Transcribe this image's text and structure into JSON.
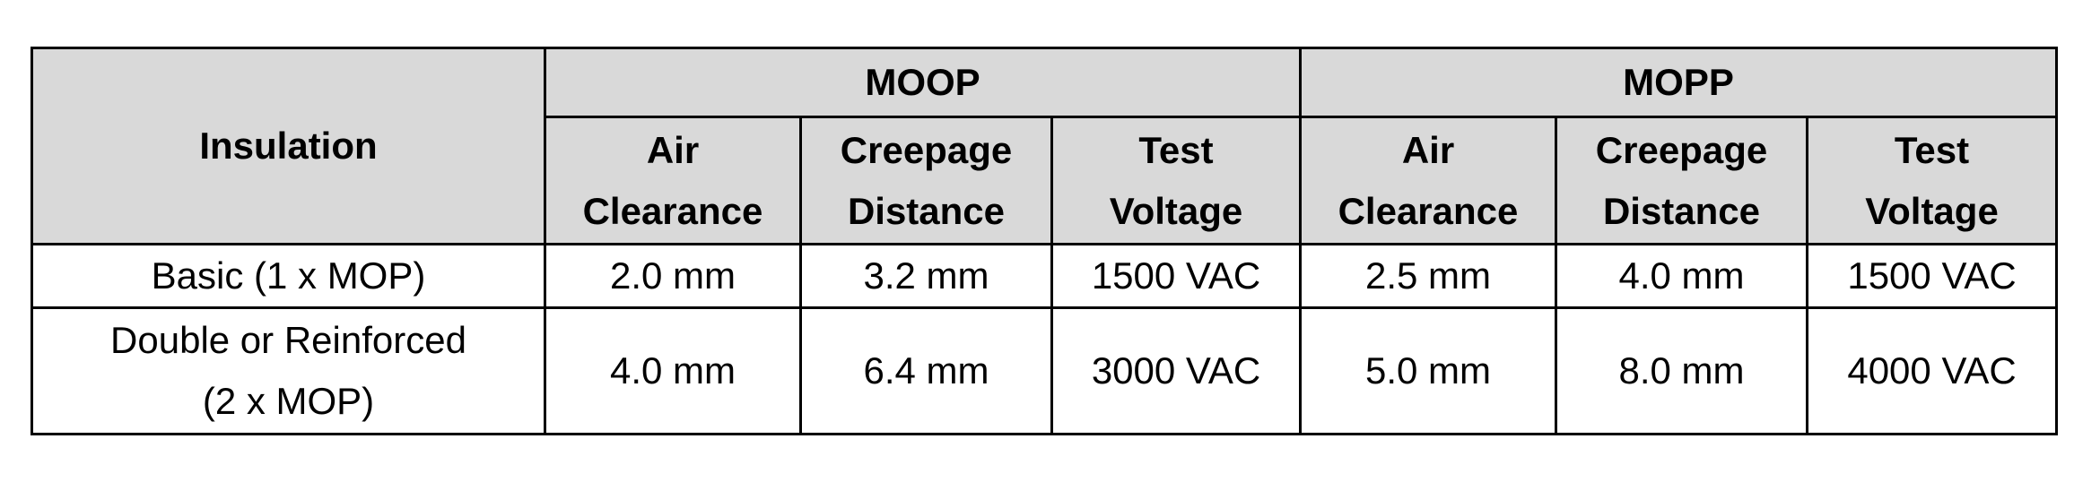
{
  "table": {
    "header": {
      "row_label": "Insulation",
      "groups": [
        "MOOP",
        "MOPP"
      ],
      "subcolumns": [
        [
          "Air",
          "Clearance"
        ],
        [
          "Creepage",
          "Distance"
        ],
        [
          "Test",
          "Voltage"
        ],
        [
          "Air",
          "Clearance"
        ],
        [
          "Creepage",
          "Distance"
        ],
        [
          "Test",
          "Voltage"
        ]
      ]
    },
    "rows": [
      [
        [
          "Basic (1 x MOP)"
        ],
        "2.0 mm",
        "3.2 mm",
        "1500 VAC",
        "2.5 mm",
        "4.0 mm",
        "1500 VAC"
      ],
      [
        [
          "Double or Reinforced",
          "(2 x MOP)"
        ],
        "4.0 mm",
        "6.4 mm",
        "3000 VAC",
        "5.0 mm",
        "8.0 mm",
        "4000 VAC"
      ]
    ]
  }
}
